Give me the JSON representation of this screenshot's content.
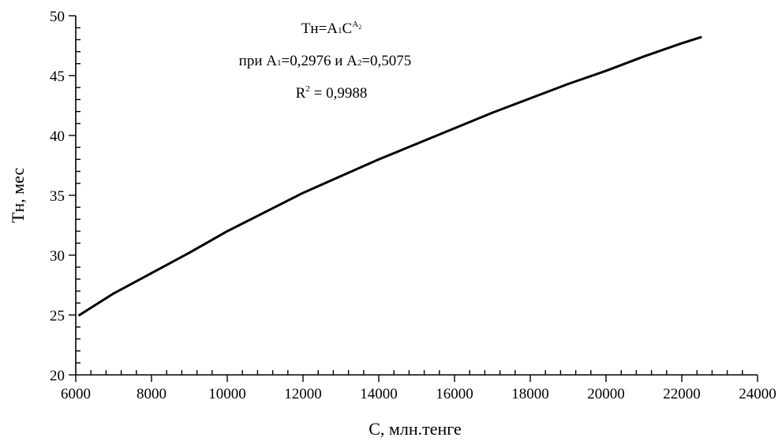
{
  "chart_data": {
    "type": "line",
    "title": "",
    "xlabel": "С, млн.тенге",
    "ylabel": "Тн, мес",
    "xlim": [
      6000,
      24000
    ],
    "ylim": [
      20,
      50
    ],
    "xticks": [
      "6000",
      "8000",
      "10000",
      "12000",
      "14000",
      "16000",
      "18000",
      "20000",
      "22000",
      "24000"
    ],
    "yticks": [
      "20",
      "25",
      "30",
      "35",
      "40",
      "45",
      "50"
    ],
    "grid": false,
    "legend": "none",
    "annotations": {
      "formula": {
        "base": "Тн=А",
        "base_sub": "1",
        "mid": "С",
        "exp": "А",
        "exp_sub": "2"
      },
      "params": {
        "p1": "при А",
        "p1_sub": "1",
        "p2": "=0,2976 и А",
        "p2_sub": "2",
        "p3": "=0,5075"
      },
      "r2": {
        "prefix": "R",
        "sup": "2",
        "suffix": " = 0,9988"
      }
    },
    "series": [
      {
        "color": "#000000",
        "x": [
          6100,
          7000,
          8000,
          9000,
          10000,
          11000,
          12000,
          13000,
          14000,
          15000,
          16000,
          17000,
          18000,
          19000,
          20000,
          21000,
          22000,
          22500
        ],
        "y": [
          25.0,
          26.8,
          28.5,
          30.2,
          32.0,
          33.6,
          35.2,
          36.6,
          38.0,
          39.3,
          40.6,
          41.9,
          43.1,
          44.3,
          45.4,
          46.6,
          47.7,
          48.2
        ]
      }
    ]
  }
}
